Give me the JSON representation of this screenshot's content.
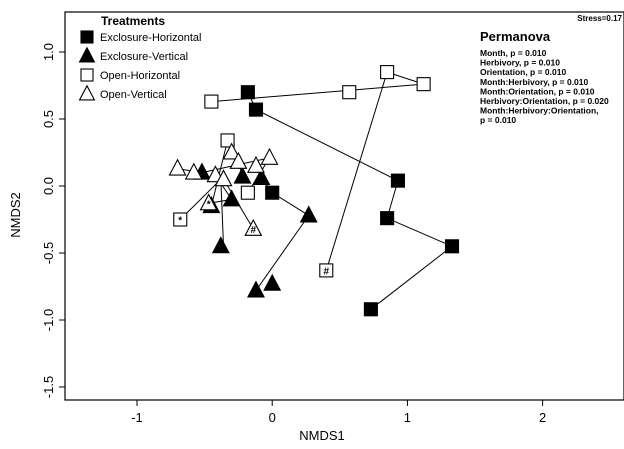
{
  "chart_data": {
    "type": "scatter",
    "xlabel": "NMDS1",
    "ylabel": "NMDS2",
    "xlim": [
      -1.5,
      2.6
    ],
    "ylim": [
      -1.55,
      1.3
    ],
    "x_ticks": [
      -1,
      0,
      1,
      2
    ],
    "y_ticks": [
      -1.5,
      -1.0,
      -0.5,
      0.0,
      0.5,
      1.0
    ],
    "y_tick_labels": [
      "-1.5",
      "-1.0",
      "-0.5",
      "0.0",
      "0.5",
      "1.0"
    ],
    "x_tick_labels": [
      "-1",
      "0",
      "1",
      "2"
    ],
    "stress_text": "Stress=0.17",
    "legend": {
      "title": "Treatments",
      "position": "top-left",
      "entries": [
        "Exclosure-Horizontal",
        "Exclosure-Vertical",
        "Open-Horizontal",
        "Open-Vertical"
      ]
    },
    "permanova": {
      "title": "Permanova",
      "lines": [
        "Month, p = 0.010",
        "Herbivory, p = 0.010",
        "Orientation, p = 0.010",
        "Month:Herbivory, p = 0.010",
        "Month:Orientation, p = 0.010",
        "Herbivory:Orientation, p = 0.020",
        "Month:Herbivory:Orientation,",
        "p = 0.010"
      ]
    },
    "series": [
      {
        "name": "Exclosure-Horizontal",
        "marker": "filled-square",
        "points": [
          [
            -0.18,
            0.7
          ],
          [
            -0.12,
            0.57
          ],
          [
            0.93,
            0.04
          ],
          [
            0.85,
            -0.24
          ],
          [
            1.33,
            -0.45
          ],
          [
            0.73,
            -0.92
          ],
          [
            0.0,
            -0.05
          ]
        ],
        "labels": [
          "",
          "",
          "",
          "",
          "",
          "#",
          ""
        ]
      },
      {
        "name": "Exclosure-Vertical",
        "marker": "filled-triangle",
        "points": [
          [
            -0.38,
            -0.45
          ],
          [
            -0.3,
            -0.1
          ],
          [
            -0.22,
            0.07
          ],
          [
            -0.08,
            0.06
          ],
          [
            0.27,
            -0.22
          ],
          [
            -0.12,
            -0.78
          ],
          [
            -0.52,
            0.1
          ],
          [
            -0.45,
            -0.15
          ],
          [
            0.0,
            -0.73
          ]
        ],
        "labels": [
          "",
          "",
          "",
          "",
          "",
          "",
          "*",
          "*",
          "#"
        ]
      },
      {
        "name": "Open-Horizontal",
        "marker": "open-square",
        "points": [
          [
            -0.45,
            0.63
          ],
          [
            0.57,
            0.7
          ],
          [
            0.85,
            0.85
          ],
          [
            1.12,
            0.76
          ],
          [
            -0.33,
            0.34
          ],
          [
            -0.18,
            -0.05
          ],
          [
            0.4,
            -0.63
          ],
          [
            -0.68,
            -0.25
          ]
        ],
        "labels": [
          "",
          "",
          "",
          "",
          "",
          "",
          "#",
          "*"
        ]
      },
      {
        "name": "Open-Vertical",
        "marker": "open-triangle",
        "points": [
          [
            -0.7,
            0.13
          ],
          [
            -0.58,
            0.1
          ],
          [
            -0.42,
            0.08
          ],
          [
            -0.3,
            0.25
          ],
          [
            -0.25,
            0.18
          ],
          [
            -0.12,
            0.15
          ],
          [
            -0.02,
            0.21
          ],
          [
            -0.36,
            0.05
          ],
          [
            -0.47,
            -0.13
          ],
          [
            -0.14,
            -0.32
          ]
        ],
        "labels": [
          "",
          "",
          "",
          "",
          "",
          "",
          "",
          "",
          "*",
          "#"
        ]
      }
    ],
    "segments": [
      [
        [
          -0.18,
          0.7
        ],
        [
          -0.12,
          0.57
        ]
      ],
      [
        [
          -0.12,
          0.57
        ],
        [
          0.93,
          0.04
        ]
      ],
      [
        [
          0.93,
          0.04
        ],
        [
          0.85,
          -0.24
        ]
      ],
      [
        [
          0.85,
          -0.24
        ],
        [
          1.33,
          -0.45
        ]
      ],
      [
        [
          1.33,
          -0.45
        ],
        [
          0.73,
          -0.92
        ]
      ],
      [
        [
          -0.45,
          0.63
        ],
        [
          1.12,
          0.76
        ]
      ],
      [
        [
          1.12,
          0.76
        ],
        [
          0.85,
          0.85
        ]
      ],
      [
        [
          0.85,
          0.85
        ],
        [
          0.4,
          -0.63
        ]
      ],
      [
        [
          -0.08,
          0.06
        ],
        [
          0.0,
          -0.05
        ]
      ],
      [
        [
          0.0,
          -0.05
        ],
        [
          0.27,
          -0.22
        ]
      ],
      [
        [
          0.27,
          -0.22
        ],
        [
          -0.12,
          -0.78
        ]
      ],
      [
        [
          -0.33,
          0.34
        ],
        [
          -0.45,
          -0.15
        ]
      ],
      [
        [
          -0.68,
          -0.25
        ],
        [
          -0.38,
          0.05
        ]
      ],
      [
        [
          -0.38,
          0.05
        ],
        [
          -0.36,
          -0.45
        ]
      ],
      [
        [
          -0.36,
          0.05
        ],
        [
          -0.14,
          -0.32
        ]
      ],
      [
        [
          -0.7,
          0.13
        ],
        [
          -0.52,
          0.1
        ]
      ],
      [
        [
          -0.52,
          0.1
        ],
        [
          -0.02,
          0.21
        ]
      ],
      [
        [
          -0.25,
          0.18
        ],
        [
          -0.22,
          0.07
        ]
      ],
      [
        [
          -0.42,
          0.08
        ],
        [
          -0.3,
          -0.1
        ]
      ],
      [
        [
          -0.3,
          -0.1
        ],
        [
          -0.47,
          -0.13
        ]
      ],
      [
        [
          -0.18,
          -0.05
        ],
        [
          -0.02,
          0.21
        ]
      ]
    ]
  }
}
